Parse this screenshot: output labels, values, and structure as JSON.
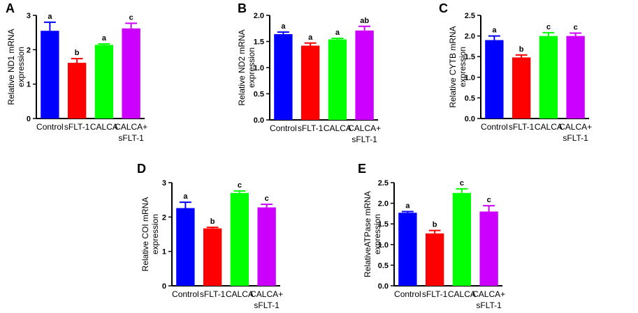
{
  "chart_data": [
    {
      "panel": "A",
      "type": "bar",
      "ylabel": [
        "Relative  ND1 mRNA",
        "expression"
      ],
      "ylim": [
        0,
        3
      ],
      "yticks": [
        "0",
        "1",
        "2",
        "3"
      ],
      "yticks_values": [
        0,
        1,
        2,
        3
      ],
      "categories": [
        [
          "Control"
        ],
        [
          "sFLT-1"
        ],
        [
          "CALCA"
        ],
        [
          "CALCA+",
          "sFLT-1"
        ]
      ],
      "values": [
        2.55,
        1.62,
        2.14,
        2.62
      ],
      "errors": [
        0.25,
        0.12,
        0.03,
        0.15
      ],
      "significance": [
        "a",
        "b",
        "a",
        "c"
      ],
      "colors": [
        "#0000ff",
        "#ff0000",
        "#00ff00",
        "#cc00ff"
      ]
    },
    {
      "panel": "B",
      "type": "bar",
      "ylabel": [
        "Relative ND2 mRNA",
        "expression"
      ],
      "ylim": [
        0,
        2.0
      ],
      "yticks": [
        "0.0",
        "0.5",
        "1.0",
        "1.5",
        "2.0"
      ],
      "yticks_values": [
        0,
        0.5,
        1.0,
        1.5,
        2.0
      ],
      "categories": [
        [
          "Control"
        ],
        [
          "sFLT-1"
        ],
        [
          "CALCA"
        ],
        [
          "CALCA+",
          "sFLT-1"
        ]
      ],
      "values": [
        1.64,
        1.42,
        1.54,
        1.71
      ],
      "errors": [
        0.04,
        0.05,
        0.02,
        0.08
      ],
      "significance": [
        "a",
        "a",
        "a",
        "ab"
      ],
      "colors": [
        "#0000ff",
        "#ff0000",
        "#00ff00",
        "#cc00ff"
      ]
    },
    {
      "panel": "C",
      "type": "bar",
      "ylabel": [
        "Relative CYTB mRNA",
        "expression"
      ],
      "ylim": [
        0,
        2.5
      ],
      "yticks": [
        "0.0",
        "0.5",
        "1.0",
        "1.5",
        "2.0",
        "2.5"
      ],
      "yticks_values": [
        0,
        0.5,
        1.0,
        1.5,
        2.0,
        2.5
      ],
      "categories": [
        [
          "Control"
        ],
        [
          "sFLT-1"
        ],
        [
          "CALCA"
        ],
        [
          "CALCA+",
          "sFLT-1"
        ]
      ],
      "values": [
        1.9,
        1.48,
        2.0,
        2.0
      ],
      "errors": [
        0.1,
        0.06,
        0.08,
        0.07
      ],
      "significance": [
        "a",
        "b",
        "c",
        "c"
      ],
      "colors": [
        "#0000ff",
        "#ff0000",
        "#00ff00",
        "#cc00ff"
      ]
    },
    {
      "panel": "D",
      "type": "bar",
      "ylabel": [
        "Relative COI mRNA",
        "expression"
      ],
      "ylim": [
        0,
        3
      ],
      "yticks": [
        "0",
        "1",
        "2",
        "3"
      ],
      "yticks_values": [
        0,
        1,
        2,
        3
      ],
      "categories": [
        [
          "Control"
        ],
        [
          "sFLT-1"
        ],
        [
          "CALCA"
        ],
        [
          "CALCA+",
          "sFLT-1"
        ]
      ],
      "values": [
        2.26,
        1.67,
        2.7,
        2.28
      ],
      "errors": [
        0.17,
        0.03,
        0.06,
        0.09
      ],
      "significance": [
        "a",
        "b",
        "c",
        "c"
      ],
      "colors": [
        "#0000ff",
        "#ff0000",
        "#00ff00",
        "#cc00ff"
      ]
    },
    {
      "panel": "E",
      "type": "bar",
      "ylabel": [
        "RelativeATPase mRNA",
        "expression"
      ],
      "ylim": [
        0,
        2.5
      ],
      "yticks": [
        "0.0",
        "0.5",
        "1.0",
        "1.5",
        "2.0",
        "2.5"
      ],
      "yticks_values": [
        0,
        0.5,
        1.0,
        1.5,
        2.0,
        2.5
      ],
      "categories": [
        [
          "Control"
        ],
        [
          "sFLT-1"
        ],
        [
          "CALCA"
        ],
        [
          "CALCA+",
          "sFLT-1"
        ]
      ],
      "values": [
        1.77,
        1.27,
        2.25,
        1.8
      ],
      "errors": [
        0.03,
        0.07,
        0.1,
        0.14
      ],
      "significance": [
        "a",
        "b",
        "c",
        "c"
      ],
      "colors": [
        "#0000ff",
        "#ff0000",
        "#00ff00",
        "#cc00ff"
      ]
    }
  ]
}
